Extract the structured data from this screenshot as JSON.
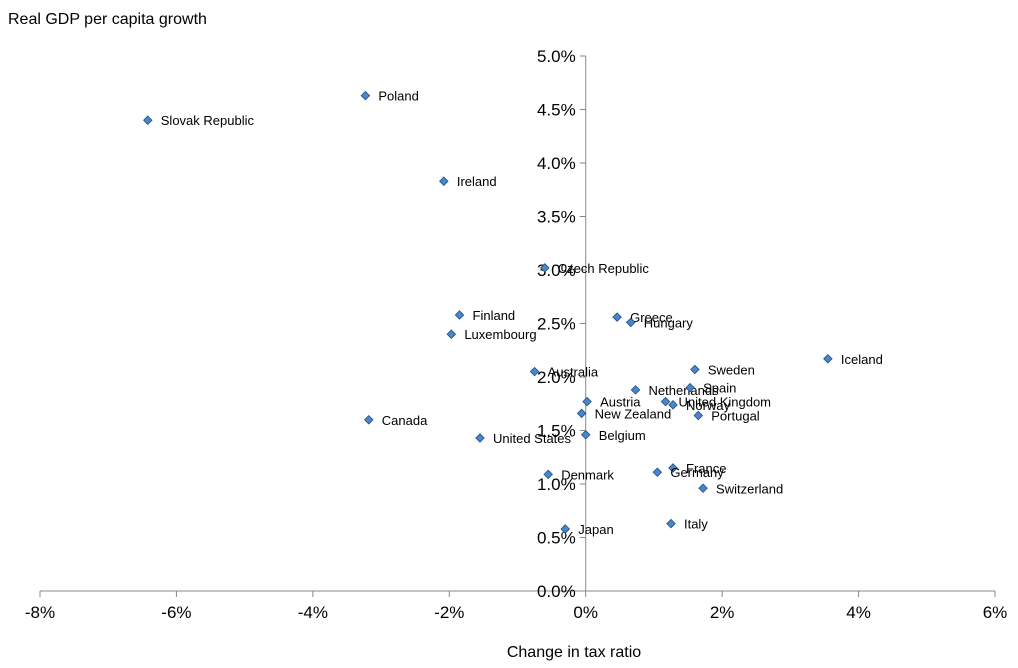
{
  "chart_data": {
    "type": "scatter",
    "ylabel": "Real GDP per capita growth",
    "xlabel": "Change in tax ratio",
    "xlim": [
      -8,
      6
    ],
    "ylim": [
      0,
      5
    ],
    "x_ticks": [
      -8,
      -6,
      -4,
      -2,
      0,
      2,
      4,
      6
    ],
    "y_ticks": [
      0,
      0.5,
      1,
      1.5,
      2,
      2.5,
      3,
      3.5,
      4,
      4.5,
      5
    ],
    "x_tick_labels": [
      "-8%",
      "-6%",
      "-4%",
      "-2%",
      "0%",
      "2%",
      "4%",
      "6%"
    ],
    "y_tick_labels": [
      "0.0%",
      "0.5%",
      "1.0%",
      "1.5%",
      "2.0%",
      "2.5%",
      "3.0%",
      "3.5%",
      "4.0%",
      "4.5%",
      "5.0%"
    ],
    "grid": false,
    "marker_color": "#4a86c8",
    "points": [
      {
        "label": "Poland",
        "x": -3.23,
        "y": 4.63
      },
      {
        "label": "Slovak Republic",
        "x": -6.42,
        "y": 4.4
      },
      {
        "label": "Ireland",
        "x": -2.08,
        "y": 3.83
      },
      {
        "label": "Czech Republic",
        "x": -0.6,
        "y": 3.02
      },
      {
        "label": "Finland",
        "x": -1.85,
        "y": 2.58
      },
      {
        "label": "Luxembourg",
        "x": -1.97,
        "y": 2.4
      },
      {
        "label": "Greece",
        "x": 0.46,
        "y": 2.56
      },
      {
        "label": "Hungary",
        "x": 0.66,
        "y": 2.51
      },
      {
        "label": "Iceland",
        "x": 3.55,
        "y": 2.17
      },
      {
        "label": "Australia",
        "x": -0.75,
        "y": 2.05
      },
      {
        "label": "Sweden",
        "x": 1.6,
        "y": 2.07
      },
      {
        "label": "Netherlands",
        "x": 0.73,
        "y": 1.88
      },
      {
        "label": "Spain",
        "x": 1.53,
        "y": 1.9
      },
      {
        "label": "Austria",
        "x": 0.02,
        "y": 1.77
      },
      {
        "label": "United Kingdom",
        "x": 1.17,
        "y": 1.77
      },
      {
        "label": "Norway",
        "x": 1.28,
        "y": 1.74
      },
      {
        "label": "New Zealand",
        "x": -0.06,
        "y": 1.66
      },
      {
        "label": "Portugal",
        "x": 1.65,
        "y": 1.64
      },
      {
        "label": "Canada",
        "x": -3.18,
        "y": 1.6
      },
      {
        "label": "Belgium",
        "x": 0.0,
        "y": 1.46
      },
      {
        "label": "United States",
        "x": -1.55,
        "y": 1.43
      },
      {
        "label": "France",
        "x": 1.28,
        "y": 1.15
      },
      {
        "label": "Germany",
        "x": 1.05,
        "y": 1.11
      },
      {
        "label": "Denmark",
        "x": -0.55,
        "y": 1.09
      },
      {
        "label": "Switzerland",
        "x": 1.72,
        "y": 0.96
      },
      {
        "label": "Italy",
        "x": 1.25,
        "y": 0.63
      },
      {
        "label": "Japan",
        "x": -0.3,
        "y": 0.58
      }
    ]
  }
}
